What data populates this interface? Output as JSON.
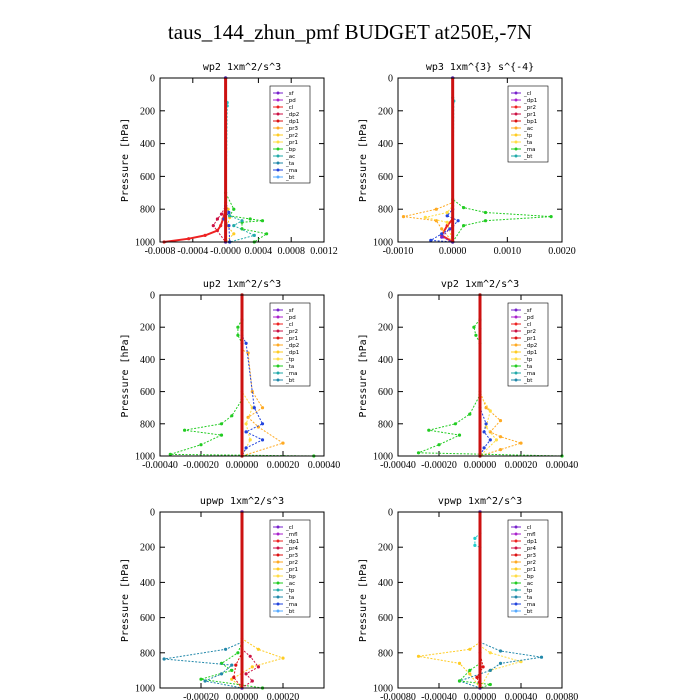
{
  "figure": {
    "title": "taus_144_zhun_pmf  BUDGET at250E,-7N"
  },
  "chart_data": [
    {
      "type": "line",
      "title": "wp2  1xm^2/s^3",
      "ylabel": "Pressure [hPa]",
      "xlim": [
        -0.0008,
        0.0012
      ],
      "ylim": [
        1000,
        0
      ],
      "xticks": [
        -0.0008,
        -0.0004,
        -0.0,
        0.0004,
        0.0008,
        0.0012
      ],
      "xtick_labels": [
        "-0.0008",
        "-0.0004",
        "-0.0000",
        "0.0004",
        "0.0008",
        "0.0012"
      ],
      "yticks": [
        0,
        200,
        400,
        600,
        800,
        1000
      ],
      "ytick_labels": [
        "0",
        "200",
        "400",
        "600",
        "800",
        "1000"
      ],
      "legend": [
        "_sf",
        "_pd",
        "_cl",
        "_dp2",
        "_dp1",
        "_pr3",
        "_pr2",
        "_pr1",
        "_bp",
        "_ac",
        "_ta",
        "_ma",
        "_bt"
      ],
      "series": [
        {
          "name": "_cl",
          "color": "#ee2222",
          "x": [
            0,
            0,
            -3e-05,
            -6e-05,
            -0.0001,
            -0.00025,
            -0.00045,
            -0.00075
          ],
          "y": [
            0,
            800,
            860,
            900,
            930,
            960,
            980,
            1000
          ]
        },
        {
          "name": "_dp2",
          "color": "#cc1144",
          "x": [
            0,
            0,
            -5e-05,
            -0.0001,
            -0.00015,
            0
          ],
          "y": [
            0,
            780,
            830,
            860,
            900,
            1000
          ]
        },
        {
          "name": "_pr2",
          "color": "#ffcc22",
          "x": [
            0,
            0,
            3e-05,
            5e-05,
            2e-05,
            0.0001,
            0
          ],
          "y": [
            0,
            760,
            800,
            850,
            900,
            950,
            1000
          ]
        },
        {
          "name": "_bp",
          "color": "#22cc22",
          "x": [
            0,
            0,
            0.0001,
            5e-05,
            0.0003,
            0.00045,
            0.0002,
            0.0002,
            0.0005,
            0.00035
          ],
          "y": [
            0,
            700,
            800,
            840,
            860,
            870,
            880,
            920,
            950,
            1000
          ]
        },
        {
          "name": "_ac",
          "color": "#22aaaa",
          "x": [
            0,
            0,
            5e-05,
            0.0002,
            0.0001,
            0.00035,
            5e-05
          ],
          "y": [
            0,
            780,
            840,
            870,
            900,
            960,
            1000
          ]
        },
        {
          "name": "_ta",
          "color": "#2244dd",
          "x": [
            0,
            0,
            4e-05,
            -2e-05,
            4e-05,
            5e-05
          ],
          "y": [
            0,
            780,
            820,
            860,
            900,
            1000
          ]
        },
        {
          "name": "_bt",
          "color": "#22cccc",
          "x": [
            0,
            0,
            2e-05,
            2e-05,
            0
          ],
          "y": [
            0,
            140,
            150,
            170,
            1000
          ]
        },
        {
          "name": "_sf",
          "color": "#7722cc",
          "x": [
            0,
            0
          ],
          "y": [
            0,
            1000
          ]
        }
      ]
    },
    {
      "type": "line",
      "title": "wp3  1xm^{3} s^{-4}",
      "ylabel": "Pressure [hPa]",
      "xlim": [
        -0.001,
        0.002
      ],
      "ylim": [
        1000,
        0
      ],
      "xticks": [
        -0.001,
        0.0,
        0.001,
        0.002
      ],
      "xtick_labels": [
        "-0.0010",
        "0.0000",
        "0.0010",
        "0.0020"
      ],
      "yticks": [
        0,
        200,
        400,
        600,
        800,
        1000
      ],
      "ytick_labels": [
        "0",
        "200",
        "400",
        "600",
        "800",
        "1000"
      ],
      "legend": [
        "_cl",
        "_dp1",
        "_pr2",
        "_pr1",
        "_bp1",
        "_ac",
        "_tp",
        "_ta",
        "_ma",
        "_bt"
      ],
      "series": [
        {
          "name": "_cl",
          "color": "#ee2222",
          "x": [
            0,
            0,
            -0.0001,
            -0.0002,
            0
          ],
          "y": [
            0,
            860,
            900,
            960,
            1000
          ]
        },
        {
          "name": "_pr2",
          "color": "#ffaa22",
          "x": [
            0,
            0,
            -0.0003,
            -0.0009,
            -0.0003,
            -0.0002,
            0
          ],
          "y": [
            0,
            760,
            800,
            845,
            870,
            920,
            1000
          ]
        },
        {
          "name": "_pr1",
          "color": "#ffdd44",
          "x": [
            0,
            0,
            -0.0001,
            -0.0005,
            -0.0001,
            0
          ],
          "y": [
            0,
            780,
            820,
            850,
            880,
            1000
          ]
        },
        {
          "name": "_bp1",
          "color": "#22cc22",
          "x": [
            0,
            0,
            0.0002,
            0.0006,
            0.0018,
            0.0006,
            0.0002,
            0
          ],
          "y": [
            0,
            740,
            790,
            820,
            845,
            870,
            900,
            1000
          ]
        },
        {
          "name": "_ta",
          "color": "#2244dd",
          "x": [
            0,
            0,
            -0.0001,
            0.0001,
            -5e-05,
            -0.0002,
            -0.0004,
            0
          ],
          "y": [
            0,
            800,
            840,
            870,
            920,
            950,
            990,
            1000
          ]
        },
        {
          "name": "_bt",
          "color": "#22cccc",
          "x": [
            0,
            0,
            2e-05,
            0
          ],
          "y": [
            0,
            120,
            140,
            1000
          ]
        },
        {
          "name": "_dp1",
          "color": "#7722cc",
          "x": [
            0,
            0,
            -0.0002,
            0
          ],
          "y": [
            0,
            900,
            970,
            1000
          ]
        }
      ]
    },
    {
      "type": "line",
      "title": "up2  1xm^2/s^3",
      "ylabel": "Pressure [hPa]",
      "xlim": [
        -0.0004,
        0.0004
      ],
      "ylim": [
        1000,
        0
      ],
      "xticks": [
        -0.0004,
        -0.0002,
        0.0,
        0.0002,
        0.0004
      ],
      "xtick_labels": [
        "-0.00040",
        "-0.00020",
        "0.00000",
        "0.00020",
        "0.00040"
      ],
      "yticks": [
        0,
        200,
        400,
        600,
        800,
        1000
      ],
      "ytick_labels": [
        "0",
        "200",
        "400",
        "600",
        "800",
        "1000"
      ],
      "legend": [
        "_sf",
        "_pd",
        "_cl",
        "_pr2",
        "_pr1",
        "_dp2",
        "_dp1",
        "_tp",
        "_ta",
        "_ma",
        "_bt"
      ],
      "series": [
        {
          "name": "_pr2",
          "color": "#ffaa22",
          "x": [
            0,
            0,
            3e-05,
            5e-05,
            0.0001,
            3e-05,
            8e-05,
            0.0002,
            0
          ],
          "y": [
            0,
            340,
            360,
            600,
            700,
            760,
            820,
            920,
            1000
          ]
        },
        {
          "name": "_pr1",
          "color": "#ffdd44",
          "x": [
            0,
            0,
            5e-05,
            2e-05,
            4e-05,
            0
          ],
          "y": [
            0,
            600,
            700,
            800,
            900,
            1000
          ]
        },
        {
          "name": "_dp2",
          "color": "#22cc22",
          "x": [
            0,
            0,
            -2e-05,
            -2e-05,
            0,
            0,
            -5e-05,
            -0.0001,
            -0.00028,
            -0.0001,
            -0.0002,
            -0.00035,
            0.00035
          ],
          "y": [
            0,
            150,
            200,
            250,
            300,
            650,
            750,
            800,
            840,
            870,
            930,
            990,
            1000
          ]
        },
        {
          "name": "_tp",
          "color": "#2244dd",
          "x": [
            0,
            0,
            2e-05,
            6e-05,
            0.0001,
            2e-05,
            0.0001,
            2e-05,
            0
          ],
          "y": [
            0,
            250,
            300,
            700,
            800,
            850,
            900,
            950,
            1000
          ]
        },
        {
          "name": "_bt",
          "color": "#22cccc",
          "x": [
            0,
            0,
            0,
            0
          ],
          "y": [
            0,
            160,
            220,
            1000
          ]
        },
        {
          "name": "_cl",
          "color": "#dd1111",
          "x": [
            0,
            0
          ],
          "y": [
            0,
            1000
          ]
        }
      ]
    },
    {
      "type": "line",
      "title": "vp2  1xm^2/s^3",
      "ylabel": "Pressure [hPa]",
      "xlim": [
        -0.0004,
        0.0004
      ],
      "ylim": [
        1000,
        0
      ],
      "xticks": [
        -0.0004,
        -0.0002,
        0.0,
        0.0002,
        0.0004
      ],
      "xtick_labels": [
        "-0.00040",
        "-0.00020",
        "0.00000",
        "0.00020",
        "0.00040"
      ],
      "yticks": [
        0,
        200,
        400,
        600,
        800,
        1000
      ],
      "ytick_labels": [
        "0",
        "200",
        "400",
        "600",
        "800",
        "1000"
      ],
      "legend": [
        "_sf",
        "_pd",
        "_cl",
        "_pr2",
        "_pr1",
        "_dp2",
        "_dp1",
        "_tp",
        "_ta",
        "_ma",
        "_bt"
      ],
      "series": [
        {
          "name": "_pr2",
          "color": "#ffaa22",
          "x": [
            0,
            0,
            3e-05,
            0.0001,
            5e-05,
            0.0001,
            0.0002,
            0.0001,
            0
          ],
          "y": [
            0,
            600,
            700,
            780,
            850,
            880,
            920,
            960,
            1000
          ]
        },
        {
          "name": "_pr1",
          "color": "#ffdd44",
          "x": [
            0,
            0,
            5e-05,
            3e-05,
            8e-05,
            0
          ],
          "y": [
            0,
            620,
            720,
            820,
            900,
            1000
          ]
        },
        {
          "name": "_dp2",
          "color": "#22cc22",
          "x": [
            0,
            0,
            -3e-05,
            -2e-05,
            0,
            0,
            -5e-05,
            -0.00012,
            -0.00025,
            -0.0001,
            -0.0002,
            -0.0003,
            0.0004
          ],
          "y": [
            0,
            150,
            200,
            250,
            300,
            620,
            740,
            800,
            840,
            870,
            930,
            980,
            1000
          ]
        },
        {
          "name": "_tp",
          "color": "#2244dd",
          "x": [
            0,
            0,
            3e-05,
            2e-05,
            5e-05,
            2e-05,
            0
          ],
          "y": [
            0,
            700,
            800,
            850,
            900,
            950,
            1000
          ]
        },
        {
          "name": "_bt",
          "color": "#22cccc",
          "x": [
            0,
            0,
            0,
            0
          ],
          "y": [
            0,
            160,
            210,
            1000
          ]
        },
        {
          "name": "_cl",
          "color": "#dd1111",
          "x": [
            0,
            0
          ],
          "y": [
            0,
            1000
          ]
        }
      ]
    },
    {
      "type": "line",
      "title": "upwp  1xm^2/s^3",
      "ylabel": "Pressure [hPa]",
      "xlim": [
        -0.0004,
        0.0004
      ],
      "ylim": [
        1000,
        0
      ],
      "xticks": [
        -0.0002,
        0.0,
        0.0002
      ],
      "xtick_labels": [
        "-0.00020",
        "0.00000",
        "0.00020"
      ],
      "yticks": [
        0,
        200,
        400,
        600,
        800,
        1000
      ],
      "ytick_labels": [
        "0",
        "200",
        "400",
        "600",
        "800",
        "1000"
      ],
      "legend": [
        "_cl",
        "_mfl",
        "_dp1",
        "_pr4",
        "_pr3",
        "_pr2",
        "_pr1",
        "_bp",
        "_ac",
        "_tp",
        "_ta",
        "_ma",
        "_bt"
      ],
      "series": [
        {
          "name": "_pr2",
          "color": "#ffcc22",
          "x": [
            0,
            0,
            8e-05,
            0.0002,
            5e-05,
            -5e-05,
            0
          ],
          "y": [
            0,
            720,
            780,
            830,
            880,
            950,
            1000
          ]
        },
        {
          "name": "_bp",
          "color": "#22cc22",
          "x": [
            0,
            0,
            -2e-05,
            -0.0001,
            -5e-05,
            -0.0002,
            0.0001
          ],
          "y": [
            0,
            740,
            800,
            860,
            900,
            950,
            1000
          ]
        },
        {
          "name": "_tp",
          "color": "#2288aa",
          "x": [
            0,
            0,
            -8e-05,
            -0.00038,
            -5e-05,
            -0.0001,
            -0.00018,
            0
          ],
          "y": [
            0,
            740,
            780,
            835,
            870,
            920,
            960,
            1000
          ]
        },
        {
          "name": "_pr4",
          "color": "#cc1144",
          "x": [
            0,
            0,
            4e-05,
            8e-05,
            2e-05,
            5e-05,
            0
          ],
          "y": [
            0,
            780,
            820,
            880,
            920,
            960,
            1000
          ]
        },
        {
          "name": "_dp1",
          "color": "#dd1111",
          "x": [
            0,
            0,
            -3e-05,
            -4e-05,
            0
          ],
          "y": [
            0,
            800,
            870,
            940,
            1000
          ]
        },
        {
          "name": "_cl",
          "color": "#7722cc",
          "x": [
            0,
            0
          ],
          "y": [
            0,
            1000
          ]
        }
      ]
    },
    {
      "type": "line",
      "title": "vpwp  1xm^2/s^3",
      "ylabel": "Pressure [hPa]",
      "xlim": [
        -0.0008,
        0.0008
      ],
      "ylim": [
        1000,
        0
      ],
      "xticks": [
        -0.0008,
        -0.0004,
        0.0,
        0.0004,
        0.0008
      ],
      "xtick_labels": [
        "-0.00080",
        "-0.00040",
        "0.00000",
        "0.00040",
        "0.00080"
      ],
      "yticks": [
        0,
        200,
        400,
        600,
        800,
        1000
      ],
      "ytick_labels": [
        "0",
        "200",
        "400",
        "600",
        "800",
        "1000"
      ],
      "legend": [
        "_cl",
        "_mfl",
        "_dp1",
        "_pr4",
        "_pr3",
        "_pr2",
        "_pr1",
        "_bp",
        "_ac",
        "_tp",
        "_ta",
        "_ma",
        "_bt"
      ],
      "series": [
        {
          "name": "_pr2",
          "color": "#ffcc22",
          "x": [
            0,
            0,
            -0.0001,
            -0.0006,
            -0.0002,
            -0.0001,
            0
          ],
          "y": [
            0,
            740,
            780,
            820,
            860,
            920,
            1000
          ]
        },
        {
          "name": "_pr1",
          "color": "#ffdd44",
          "x": [
            0,
            0,
            0.0001,
            0.0004,
            0.0001,
            0
          ],
          "y": [
            0,
            760,
            800,
            850,
            900,
            1000
          ]
        },
        {
          "name": "_tp",
          "color": "#2288aa",
          "x": [
            0,
            0,
            0.0002,
            0.0006,
            0.0002,
            0.0001,
            -0.0002,
            0
          ],
          "y": [
            0,
            740,
            790,
            825,
            860,
            900,
            960,
            1000
          ]
        },
        {
          "name": "_bp",
          "color": "#22cc22",
          "x": [
            0,
            0,
            -0.0001,
            -0.0002,
            0.0001,
            0
          ],
          "y": [
            0,
            860,
            900,
            960,
            980,
            1000
          ]
        },
        {
          "name": "_bt",
          "color": "#22cccc",
          "x": [
            0,
            0,
            -5e-05,
            -5e-05,
            0,
            0
          ],
          "y": [
            0,
            120,
            150,
            190,
            200,
            1000
          ]
        },
        {
          "name": "_dp1",
          "color": "#dd1111",
          "x": [
            0,
            0,
            3e-05,
            -3e-05,
            0
          ],
          "y": [
            0,
            800,
            880,
            940,
            1000
          ]
        },
        {
          "name": "_cl",
          "color": "#7722cc",
          "x": [
            0,
            0
          ],
          "y": [
            0,
            1000
          ]
        }
      ]
    }
  ]
}
